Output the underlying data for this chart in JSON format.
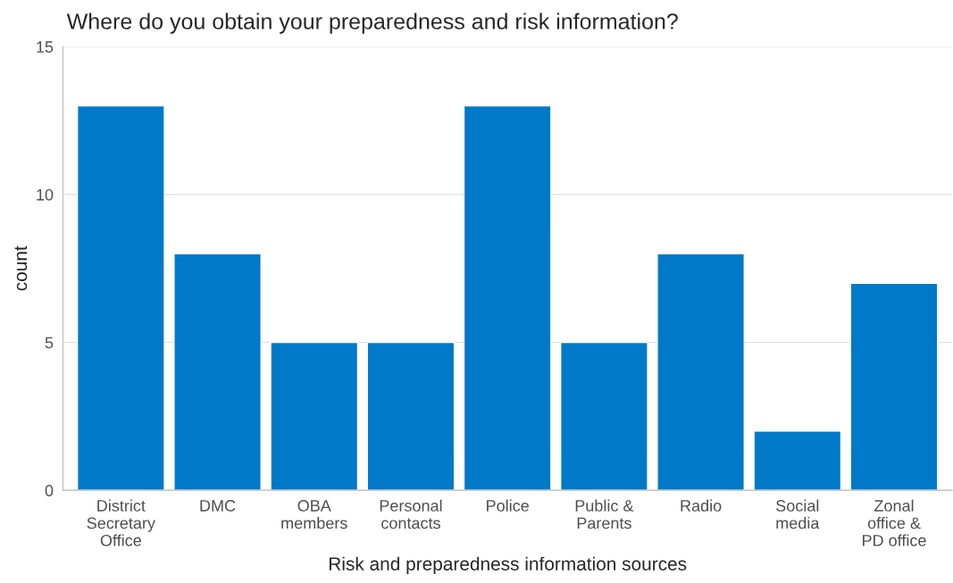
{
  "chart_data": {
    "type": "bar",
    "title": "Where do you obtain your preparedness and risk information?",
    "xlabel": "Risk and preparedness information sources",
    "ylabel": "count",
    "categories": [
      "District\nSecretary\nOffice",
      "DMC",
      "OBA\nmembers",
      "Personal\ncontacts",
      "Police",
      "Public &\nParents",
      "Radio",
      "Social\nmedia",
      "Zonal\noffice &\nPD office"
    ],
    "values": [
      13,
      8,
      5,
      5,
      13,
      5,
      8,
      2,
      7
    ],
    "color": "#0079c8",
    "ylim": [
      0,
      15
    ],
    "yticks": [
      0,
      5,
      10,
      15
    ],
    "grid": "y",
    "legend": false
  }
}
